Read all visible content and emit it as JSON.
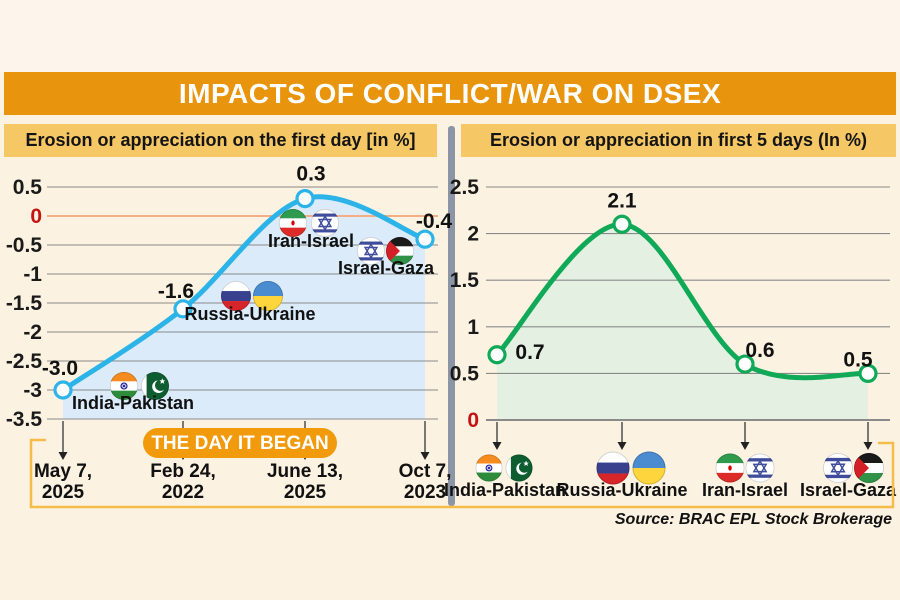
{
  "page": {
    "title": "IMPACTS OF CONFLICT/WAR ON DSEX",
    "source": "Source: BRAC EPL Stock Brokerage"
  },
  "colors": {
    "title_bar_orange": "#E8940D",
    "subtitle_bg": "#F5C765",
    "background_cream": "#FBF2E1",
    "divider_gray": "#8B95A5",
    "gridline_gray": "#8a8a8a",
    "zero_tick_red": "#C21414",
    "zero_line_salmon": "#F4AD85",
    "badge_orange": "#F09A0C",
    "bracket_gold": "#F6BC4A",
    "line_blue": "#2CB3E8",
    "fill_blue": "#DBEBF9",
    "line_green": "#0FA957",
    "fill_green": "#E4F0E2"
  },
  "chart_data": [
    {
      "type": "line",
      "title": "Erosion or appreciation on the first day [in %]",
      "categories": [
        "India-Pakistan",
        "Russia-Ukraine",
        "Iran-Israel",
        "Israel-Gaza"
      ],
      "flags": [
        [
          "india",
          "pakistan"
        ],
        [
          "russia",
          "ukraine"
        ],
        [
          "iran",
          "israel"
        ],
        [
          "israel",
          "palestine"
        ]
      ],
      "values": [
        -3.0,
        -1.6,
        0.3,
        -0.4
      ],
      "value_labels": [
        "-3.0",
        "-1.6",
        "0.3",
        "-0.4"
      ],
      "x_dates": [
        [
          "May 7,",
          "2025"
        ],
        [
          "Feb 24,",
          "2022"
        ],
        [
          "June 13,",
          "2025"
        ],
        [
          "Oct 7,",
          "2023"
        ]
      ],
      "x_axis_badge": "THE DAY IT BEGAN",
      "yticks": [
        "0.5",
        "0",
        "-0.5",
        "-1",
        "-1.5",
        "-2",
        "-2.5",
        "-3",
        "-3.5"
      ],
      "ylim": [
        -3.5,
        0.5
      ],
      "grid": true,
      "legend": "none",
      "line_color": "#2CB3E8",
      "fill_color": "#DBEBF9"
    },
    {
      "type": "line",
      "title": "Erosion or appreciation in first 5 days (In %)",
      "categories": [
        "India-Pakistan",
        "Russia-Ukraine",
        "Iran-Israel",
        "Israel-Gaza"
      ],
      "flags": [
        [
          "india",
          "pakistan"
        ],
        [
          "russia",
          "ukraine"
        ],
        [
          "iran",
          "israel"
        ],
        [
          "israel",
          "palestine"
        ]
      ],
      "values": [
        0.7,
        2.1,
        0.6,
        0.5
      ],
      "value_labels": [
        "0.7",
        "2.1",
        "0.6",
        "0.5"
      ],
      "yticks": [
        "2.5",
        "2",
        "1.5",
        "1",
        "0.5",
        "0"
      ],
      "ylim": [
        0,
        2.5
      ],
      "grid": true,
      "legend": "none",
      "line_color": "#0FA957",
      "fill_color": "#E4F0E2"
    }
  ]
}
